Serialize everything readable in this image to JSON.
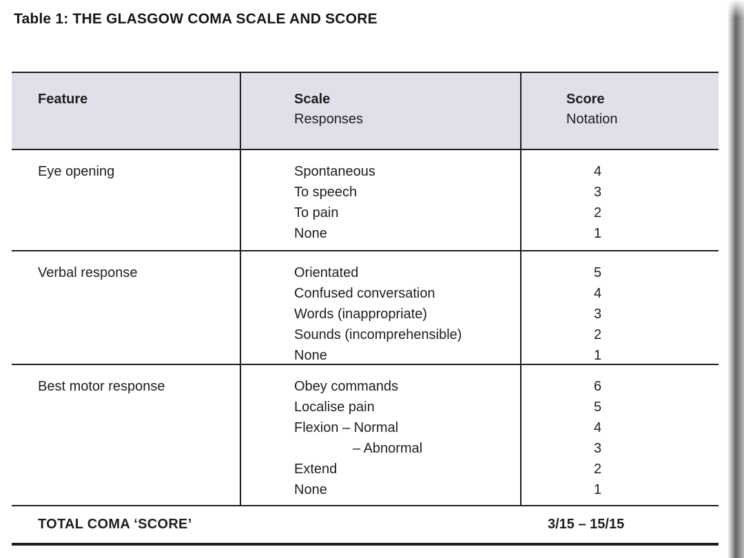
{
  "page": {
    "title": "Table 1: THE GLASGOW COMA SCALE AND SCORE"
  },
  "colors": {
    "header_bg": "#dfe0ea",
    "rule": "#1c1c1c",
    "text": "#1d1d1d"
  },
  "table": {
    "header": {
      "feature": "Feature",
      "scale_title": "Scale",
      "scale_subtitle": "Responses",
      "score_title": "Score",
      "score_subtitle": "Notation"
    },
    "sections": [
      {
        "feature": "Eye opening",
        "rows": [
          {
            "scale": "Spontaneous",
            "score": "4"
          },
          {
            "scale": "To speech",
            "score": "3"
          },
          {
            "scale": "To pain",
            "score": "2"
          },
          {
            "scale": "None",
            "score": "1"
          }
        ]
      },
      {
        "feature": "Verbal response",
        "rows": [
          {
            "scale": "Orientated",
            "score": "5"
          },
          {
            "scale": "Confused conversation",
            "score": "4"
          },
          {
            "scale": "Words (inappropriate)",
            "score": "3"
          },
          {
            "scale": "Sounds (incomprehensible)",
            "score": "2"
          },
          {
            "scale": "None",
            "score": "1"
          }
        ]
      },
      {
        "feature": "Best motor response",
        "rows": [
          {
            "scale": "Obey commands",
            "score": "6"
          },
          {
            "scale": "Localise pain",
            "score": "5"
          },
          {
            "scale": "Flexion – Normal",
            "score": "4"
          },
          {
            "scale": "– Abnormal",
            "score": "3",
            "indent": true
          },
          {
            "scale": "Extend",
            "score": "2"
          },
          {
            "scale": "None",
            "score": "1"
          }
        ]
      }
    ],
    "total": {
      "label": "TOTAL COMA ‘SCORE’",
      "value": "3/15 – 15/15"
    }
  }
}
